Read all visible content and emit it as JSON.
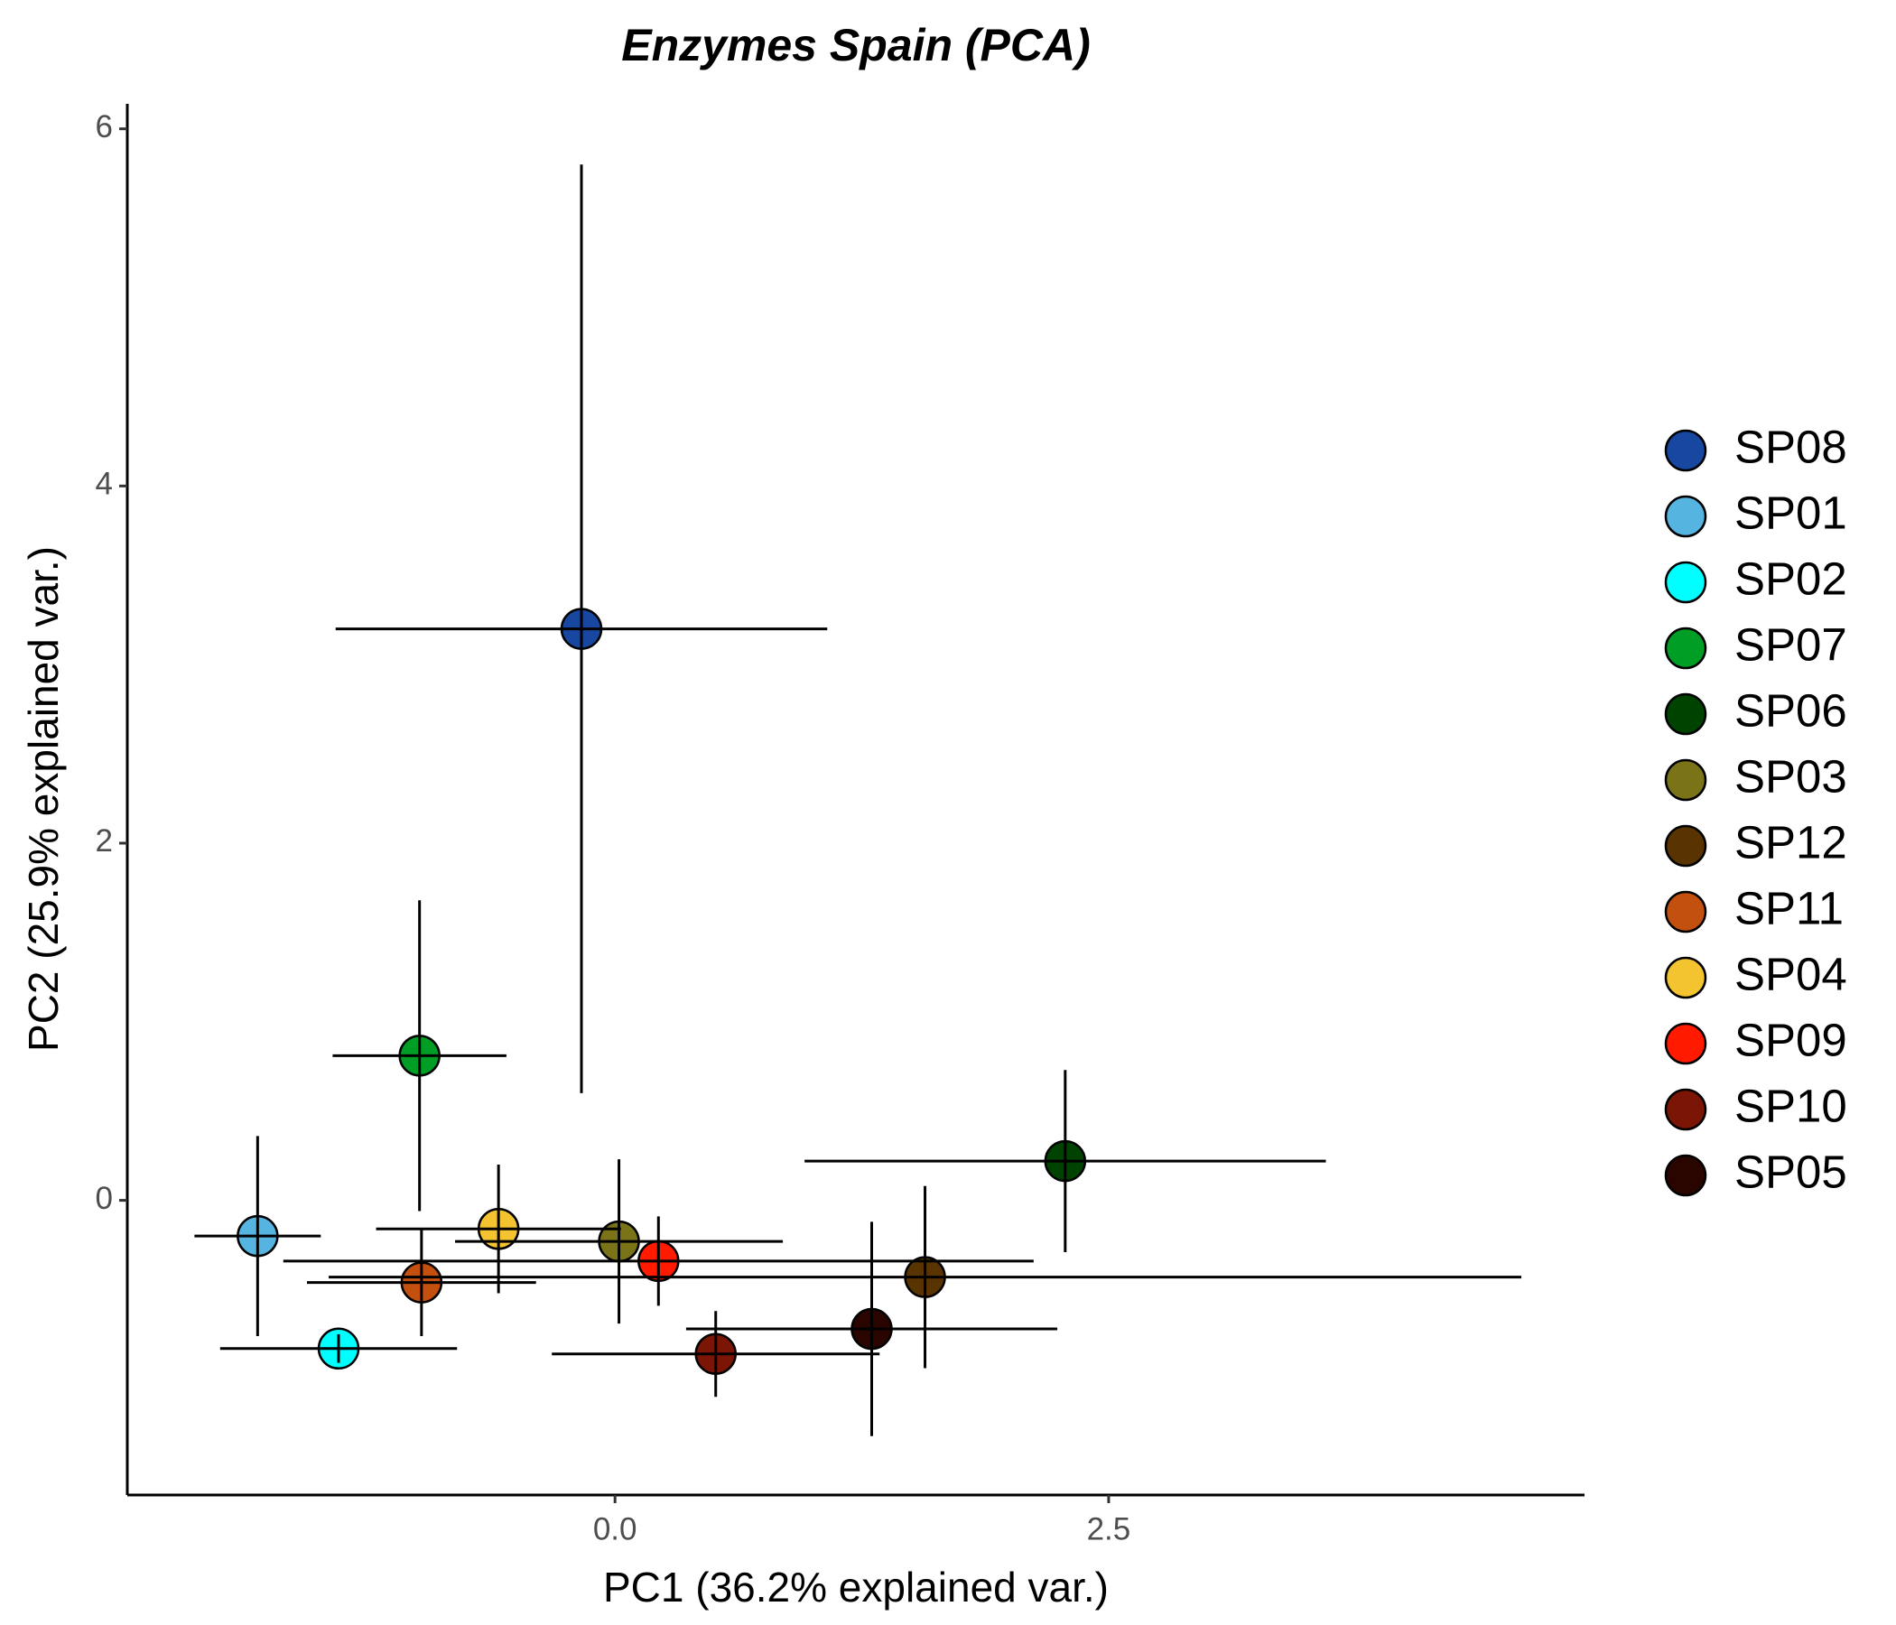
{
  "chart_data": {
    "type": "scatter",
    "title": "Enzymes Spain (PCA)",
    "x_label": "PC1 (36.2% explained var.)",
    "y_label": "PC2 (25.9% explained var.)",
    "xlim": [
      -2.47,
      4.91
    ],
    "ylim": [
      -1.65,
      6.14
    ],
    "xticks": [
      {
        "value": 0,
        "label": "0.0"
      },
      {
        "value": 2.5,
        "label": "2.5"
      }
    ],
    "yticks": [
      0,
      2,
      4,
      6
    ],
    "grid": false,
    "legend": "right",
    "series": [
      {
        "name": "SP08",
        "color": "#1747a0",
        "x": [
          -0.17
        ],
        "values": [
          3.2
        ],
        "xerr": [
          1.245
        ],
        "yerr": [
          2.6
        ]
      },
      {
        "name": "SP01",
        "color": "#56b4e0",
        "x": [
          -1.81
        ],
        "values": [
          -0.2
        ],
        "xerr": [
          0.32
        ],
        "yerr": [
          0.56
        ]
      },
      {
        "name": "SP02",
        "color": "#00ffff",
        "x": [
          -1.4
        ],
        "values": [
          -0.83
        ],
        "xerr": [
          0.6
        ],
        "yerr": [
          0.08
        ]
      },
      {
        "name": "SP07",
        "color": "#009e25",
        "x": [
          -0.99
        ],
        "values": [
          0.81
        ],
        "xerr": [
          0.44
        ],
        "yerr": [
          0.87
        ]
      },
      {
        "name": "SP06",
        "color": "#004200",
        "x": [
          2.28
        ],
        "values": [
          0.22
        ],
        "xerr": [
          1.32
        ],
        "yerr": [
          0.51
        ]
      },
      {
        "name": "SP03",
        "color": "#7a7318",
        "x": [
          0.02
        ],
        "values": [
          -0.23
        ],
        "xerr": [
          0.83
        ],
        "yerr": [
          0.46
        ]
      },
      {
        "name": "SP12",
        "color": "#5a3400",
        "x": [
          1.57
        ],
        "values": [
          -0.43
        ],
        "xerr": [
          3.02
        ],
        "yerr": [
          0.51
        ]
      },
      {
        "name": "SP11",
        "color": "#c4500f",
        "x": [
          -0.98
        ],
        "values": [
          -0.46
        ],
        "xerr": [
          0.58
        ],
        "yerr": [
          0.3
        ]
      },
      {
        "name": "SP04",
        "color": "#f4c430",
        "x": [
          -0.59
        ],
        "values": [
          -0.16
        ],
        "xerr": [
          0.62
        ],
        "yerr": [
          0.36
        ]
      },
      {
        "name": "SP09",
        "color": "#ff1a00",
        "x": [
          0.22
        ],
        "values": [
          -0.34
        ],
        "xerr": [
          1.9
        ],
        "yerr": [
          0.25
        ]
      },
      {
        "name": "SP10",
        "color": "#7b1505",
        "x": [
          0.51
        ],
        "values": [
          -0.86
        ],
        "xerr": [
          0.83
        ],
        "yerr": [
          0.24
        ]
      },
      {
        "name": "SP05",
        "color": "#2a0500",
        "x": [
          1.3
        ],
        "values": [
          -0.72
        ],
        "xerr": [
          0.94
        ],
        "yerr": [
          0.6
        ]
      }
    ]
  }
}
